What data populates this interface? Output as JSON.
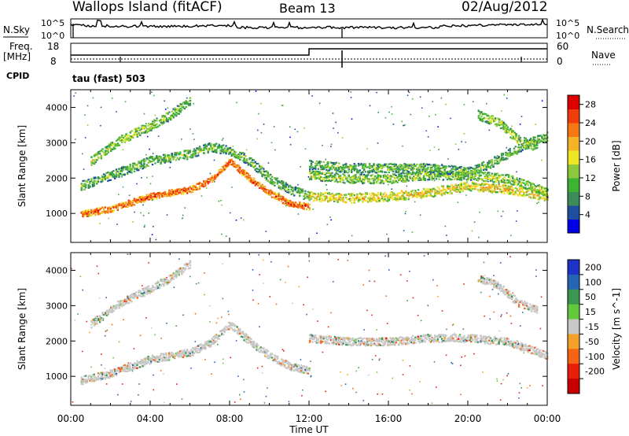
{
  "header": {
    "station": "Wallops Island (fitACF)",
    "beam": "Beam 13",
    "date": "02/Aug/2012"
  },
  "panels": {
    "nsky_label": "N.Sky",
    "nsky_ticks": [
      "10^5",
      "10^0"
    ],
    "nsearch_label": "N.Search",
    "nsearch_ticks": [
      "10^5",
      "10^0"
    ],
    "freq_label_1": "Freq.",
    "freq_label_2": "[MHz]",
    "freq_ticks": [
      "18",
      "8"
    ],
    "nave_label": "Nave",
    "nave_ticks": [
      "60",
      "0"
    ],
    "cpid_label": "CPID",
    "cpid_text": "tau (fast) 503"
  },
  "x_axis": {
    "label": "Time UT",
    "ticks": [
      "00:00",
      "04:00",
      "08:00",
      "12:00",
      "16:00",
      "20:00",
      "00:00"
    ]
  },
  "power_colorbar": {
    "label": "Power [dB]",
    "ticks": [
      "28",
      "24",
      "20",
      "16",
      "12",
      "8",
      "4"
    ],
    "colors": [
      "#0000e6",
      "#1e4ea0",
      "#3c8c5a",
      "#3cb432",
      "#8cc83c",
      "#f0e628",
      "#f5b428",
      "#f57814",
      "#f03c0a",
      "#dc0000"
    ]
  },
  "velocity_colorbar": {
    "label": "Velocity [m s^-1]",
    "ticks": [
      "200",
      "100",
      "50",
      "15",
      "-15",
      "-50",
      "-100",
      "-200"
    ],
    "colors": [
      "#1e32c8",
      "#2864b4",
      "#3c9650",
      "#64c83c",
      "#c8c8c8",
      "#f5a028",
      "#f56414",
      "#e61e0a",
      "#c80000"
    ]
  },
  "chart_data": [
    {
      "type": "heatmap",
      "name": "power",
      "ylabel": "Slant Range [km]",
      "xlabel": "",
      "x_range": [
        "00:00",
        "24:00"
      ],
      "ylim": [
        180,
        4500
      ],
      "yticks": [
        1000,
        2000,
        3000,
        4000
      ],
      "value_range": [
        0,
        30
      ],
      "bands": [
        {
          "points": [
            [
              0.5,
              1000
            ],
            [
              2.0,
              1150
            ],
            [
              4.0,
              1500
            ],
            [
              6.0,
              1700
            ],
            [
              7.0,
              1950
            ],
            [
              8.0,
              2500
            ],
            [
              9.0,
              2000
            ],
            [
              10.0,
              1600
            ],
            [
              11.0,
              1300
            ],
            [
              12.0,
              1200
            ]
          ],
          "power": 24
        },
        {
          "points": [
            [
              0.5,
              1800
            ],
            [
              2.0,
              2100
            ],
            [
              4.0,
              2500
            ],
            [
              6.0,
              2700
            ],
            [
              7.0,
              2900
            ],
            [
              8.0,
              2800
            ],
            [
              9.0,
              2500
            ],
            [
              10.0,
              2000
            ],
            [
              11.0,
              1700
            ],
            [
              12.0,
              1500
            ]
          ],
          "power": 12
        },
        {
          "points": [
            [
              1.0,
              2500
            ],
            [
              2.5,
              3100
            ],
            [
              4.0,
              3500
            ],
            [
              5.0,
              3800
            ],
            [
              6.0,
              4200
            ]
          ],
          "power": 14
        },
        {
          "points": [
            [
              12.0,
              1500
            ],
            [
              14.0,
              1450
            ],
            [
              16.0,
              1500
            ],
            [
              18.0,
              1600
            ],
            [
              20.0,
              1800
            ],
            [
              22.0,
              1700
            ],
            [
              24.0,
              1500
            ]
          ],
          "power": 18
        },
        {
          "points": [
            [
              12.0,
              2100
            ],
            [
              14.0,
              2000
            ],
            [
              16.0,
              2000
            ],
            [
              18.0,
              2100
            ],
            [
              20.0,
              2100
            ],
            [
              22.0,
              2000
            ],
            [
              24.0,
              1600
            ]
          ],
          "power": 14
        },
        {
          "points": [
            [
              12.0,
              2400
            ],
            [
              14.0,
              2300
            ],
            [
              16.0,
              2300
            ],
            [
              18.0,
              2300
            ],
            [
              20.0,
              2200
            ],
            [
              21.0,
              2400
            ],
            [
              22.0,
              2700
            ],
            [
              23.0,
              3000
            ],
            [
              24.0,
              3200
            ]
          ],
          "power": 12
        },
        {
          "points": [
            [
              20.5,
              3800
            ],
            [
              21.5,
              3600
            ],
            [
              22.5,
              3100
            ],
            [
              23.5,
              2900
            ]
          ],
          "power": 14
        }
      ]
    },
    {
      "type": "heatmap",
      "name": "velocity",
      "ylabel": "Slant Range [km]",
      "xlabel": "Time UT",
      "x_range": [
        "00:00",
        "24:00"
      ],
      "ylim": [
        180,
        4500
      ],
      "yticks": [
        1000,
        2000,
        3000,
        4000
      ],
      "value_range": [
        -200,
        200
      ],
      "bands": [
        {
          "points": [
            [
              0.5,
              900
            ],
            [
              2.0,
              1100
            ],
            [
              4.0,
              1500
            ],
            [
              6.0,
              1700
            ],
            [
              7.0,
              1950
            ],
            [
              8.0,
              2500
            ],
            [
              9.0,
              2000
            ],
            [
              10.0,
              1600
            ],
            [
              11.0,
              1300
            ],
            [
              12.0,
              1200
            ]
          ],
          "velocity": 0
        },
        {
          "points": [
            [
              1.0,
              2500
            ],
            [
              2.5,
              3100
            ],
            [
              4.0,
              3500
            ],
            [
              5.0,
              3800
            ],
            [
              6.0,
              4200
            ]
          ],
          "velocity": 0
        },
        {
          "points": [
            [
              12.0,
              2100
            ],
            [
              14.0,
              2000
            ],
            [
              16.0,
              2000
            ],
            [
              18.0,
              2100
            ],
            [
              20.0,
              2100
            ],
            [
              22.0,
              2000
            ],
            [
              24.0,
              1600
            ]
          ],
          "velocity": 0
        },
        {
          "points": [
            [
              20.5,
              3800
            ],
            [
              21.5,
              3600
            ],
            [
              22.5,
              3100
            ],
            [
              23.5,
              2900
            ]
          ],
          "velocity": 0
        }
      ]
    }
  ]
}
